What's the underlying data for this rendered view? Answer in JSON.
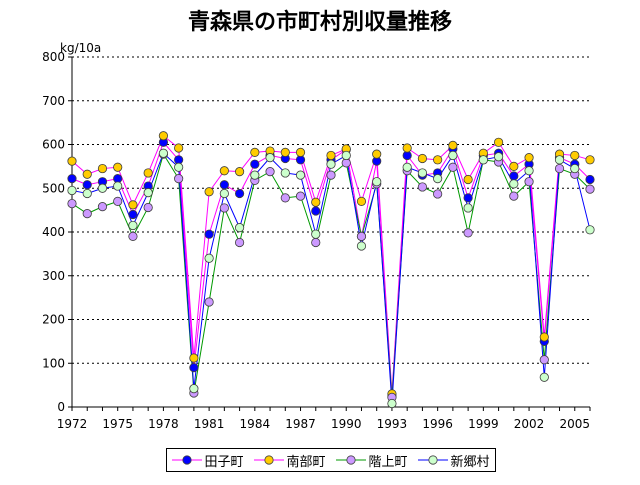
{
  "chart_data": {
    "type": "line",
    "title": "青森県の市町村別収量推移",
    "ylabel": "kg/10a",
    "xlabel": "",
    "ylim": [
      0,
      800
    ],
    "yticks": [
      0,
      100,
      200,
      300,
      400,
      500,
      600,
      700,
      800
    ],
    "x": [
      1972,
      1973,
      1974,
      1975,
      1976,
      1977,
      1978,
      1979,
      1980,
      1981,
      1982,
      1983,
      1984,
      1985,
      1986,
      1987,
      1988,
      1989,
      1990,
      1991,
      1992,
      1993,
      1994,
      1995,
      1996,
      1997,
      1998,
      1999,
      2000,
      2001,
      2002,
      2003,
      2004,
      2005,
      2006
    ],
    "xticks": [
      1972,
      1975,
      1978,
      1981,
      1984,
      1987,
      1990,
      1993,
      1996,
      1999,
      2002,
      2005
    ],
    "grid": "horizontal-dashed",
    "legend_position": "bottom",
    "series": [
      {
        "name": "田子町",
        "line": "#ff00ff",
        "marker": "#0000ff",
        "values": [
          522,
          508,
          515,
          522,
          440,
          505,
          605,
          565,
          90,
          395,
          508,
          488,
          555,
          575,
          568,
          565,
          448,
          565,
          588,
          390,
          562,
          25,
          575,
          530,
          535,
          590,
          478,
          575,
          580,
          528,
          555,
          150,
          570,
          555,
          520
        ]
      },
      {
        "name": "南部町",
        "line": "#ff00ff",
        "marker": "#ffcc00",
        "values": [
          562,
          532,
          545,
          548,
          462,
          535,
          620,
          592,
          112,
          492,
          540,
          538,
          582,
          585,
          582,
          582,
          468,
          575,
          590,
          470,
          578,
          30,
          592,
          568,
          565,
          598,
          520,
          580,
          605,
          550,
          570,
          160,
          578,
          575,
          565
        ]
      },
      {
        "name": "階上町",
        "line": "#009900",
        "marker": "#cc99ff",
        "values": [
          465,
          442,
          458,
          470,
          390,
          456,
          578,
          522,
          32,
          240,
          455,
          376,
          518,
          538,
          478,
          482,
          376,
          530,
          558,
          390,
          510,
          22,
          540,
          503,
          487,
          548,
          398,
          565,
          560,
          482,
          515,
          108,
          545,
          532,
          498
        ]
      },
      {
        "name": "新郷村",
        "line": "#0000ff",
        "marker": "#ccffcc",
        "values": [
          495,
          488,
          500,
          505,
          415,
          490,
          580,
          548,
          42,
          340,
          488,
          410,
          530,
          570,
          535,
          530,
          395,
          555,
          575,
          368,
          515,
          8,
          548,
          535,
          522,
          575,
          455,
          565,
          572,
          510,
          540,
          68,
          565,
          545,
          405
        ]
      }
    ]
  }
}
